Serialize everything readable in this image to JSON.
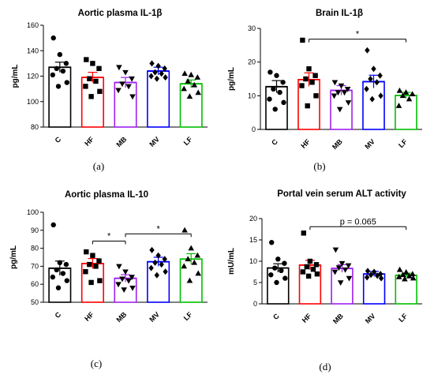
{
  "chart_data": [
    {
      "type": "bar",
      "panel_label": "(a)",
      "title": "Aortic plasma IL-1β",
      "ylabel": "pg/mL",
      "categories": [
        "C",
        "HF",
        "MB",
        "MV",
        "LF"
      ],
      "colors": [
        "#000000",
        "#ff0000",
        "#a020f0",
        "#0000ff",
        "#00c000"
      ],
      "ylim": [
        80,
        160
      ],
      "yticks": [
        "80",
        "100",
        "120",
        "140",
        "160"
      ],
      "values": [
        127,
        119,
        115,
        124,
        114
      ],
      "sem": [
        4,
        4,
        4,
        3,
        3
      ],
      "points": [
        [
          150,
          137,
          130,
          126,
          124,
          121,
          115,
          112
        ],
        [
          133,
          130,
          126,
          118,
          116,
          112,
          108,
          104
        ],
        [
          127,
          123,
          118,
          114,
          112,
          109,
          104
        ],
        [
          130,
          128,
          126,
          123,
          122,
          120,
          119,
          118
        ],
        [
          122,
          121,
          119,
          116,
          113,
          110,
          107,
          104
        ]
      ],
      "markers": [
        "circle",
        "square",
        "triangle-down",
        "diamond",
        "triangle-up"
      ],
      "annotations": []
    },
    {
      "type": "bar",
      "panel_label": "(b)",
      "title": "Brain IL-1β",
      "ylabel": "pg/mL",
      "categories": [
        "C",
        "HF",
        "MB",
        "MV",
        "LF"
      ],
      "colors": [
        "#000000",
        "#ff0000",
        "#a020f0",
        "#0000ff",
        "#00c000"
      ],
      "ylim": [
        0,
        30
      ],
      "yticks": [
        "0",
        "10",
        "20",
        "30"
      ],
      "values": [
        12.7,
        14.8,
        11.6,
        14.2,
        10.1
      ],
      "sem": [
        1.8,
        2.0,
        1.4,
        1.9,
        0.9
      ],
      "points": [
        [
          17,
          16,
          14,
          12,
          11,
          9,
          8,
          6
        ],
        [
          26.5,
          18,
          16,
          15,
          14,
          13,
          10,
          7
        ],
        [
          14,
          13,
          12,
          11,
          11,
          10,
          8,
          6
        ],
        [
          23.5,
          18,
          16,
          15,
          14,
          12,
          10,
          9
        ],
        [
          11.5,
          11,
          10.5,
          10,
          9,
          7
        ]
      ],
      "markers": [
        "circle",
        "square",
        "triangle-down",
        "diamond",
        "triangle-up"
      ],
      "annotations": [
        {
          "from": 1,
          "to": 4,
          "y": 26.8,
          "text": "*"
        }
      ]
    },
    {
      "type": "bar",
      "panel_label": "(c)",
      "title": "Aortic plasma IL-10",
      "ylabel": "pg/mL",
      "categories": [
        "C",
        "HF",
        "MB",
        "MV",
        "LF"
      ],
      "colors": [
        "#000000",
        "#ff0000",
        "#a020f0",
        "#0000ff",
        "#00c000"
      ],
      "ylim": [
        50,
        100
      ],
      "yticks": [
        "50",
        "60",
        "70",
        "80",
        "90",
        "100"
      ],
      "values": [
        68.9,
        71.5,
        63.3,
        72.5,
        74.0
      ],
      "sem": [
        4.0,
        2.8,
        2.0,
        2.5,
        3.0
      ],
      "points": [
        [
          93,
          72,
          71,
          68,
          66,
          64,
          62,
          58
        ],
        [
          78,
          76,
          73,
          71,
          70,
          67,
          62,
          61
        ],
        [
          70,
          67,
          64,
          63,
          62,
          60,
          58,
          57
        ],
        [
          79,
          76,
          74,
          72,
          71,
          69,
          67,
          65
        ],
        [
          90,
          80,
          76,
          74,
          72,
          70,
          66,
          62
        ]
      ],
      "markers": [
        "circle",
        "square",
        "triangle-down",
        "diamond",
        "triangle-up"
      ],
      "annotations": [
        {
          "from": 1,
          "to": 2,
          "y": 84,
          "text": "*"
        },
        {
          "from": 2,
          "to": 4,
          "y": 88,
          "text": "*"
        }
      ]
    },
    {
      "type": "bar",
      "panel_label": "(d)",
      "title": "Portal vein serum ALT activity",
      "ylabel": "mU/mL",
      "categories": [
        "C",
        "HF",
        "MB",
        "MV",
        "LF"
      ],
      "colors": [
        "#000000",
        "#ff0000",
        "#a020f0",
        "#0000ff",
        "#00c000"
      ],
      "ylim": [
        0,
        20
      ],
      "yticks": [
        "0",
        "5",
        "10",
        "15",
        "20"
      ],
      "values": [
        8.4,
        9.1,
        8.3,
        7.0,
        6.7
      ],
      "sem": [
        1.0,
        1.1,
        0.9,
        0.6,
        0.5
      ],
      "points": [
        [
          14.4,
          10.5,
          9.5,
          8.4,
          7.8,
          6.8,
          6,
          5
        ],
        [
          16.6,
          10,
          9.2,
          8.7,
          8.1,
          7.5,
          7,
          6.5
        ],
        [
          12.7,
          9.5,
          9,
          8.5,
          8,
          7.5,
          6,
          5
        ],
        [
          7.7,
          7.5,
          7,
          6.8,
          6.6,
          6.2,
          6
        ],
        [
          8.0,
          7.4,
          7.0,
          6.8,
          6.5,
          6.3,
          6.0,
          5.8
        ]
      ],
      "markers": [
        "circle",
        "square",
        "triangle-down",
        "diamond",
        "triangle-up"
      ],
      "annotations": [
        {
          "from": 1,
          "to": 4,
          "y": 18.1,
          "text": "p = 0.065"
        }
      ]
    }
  ]
}
